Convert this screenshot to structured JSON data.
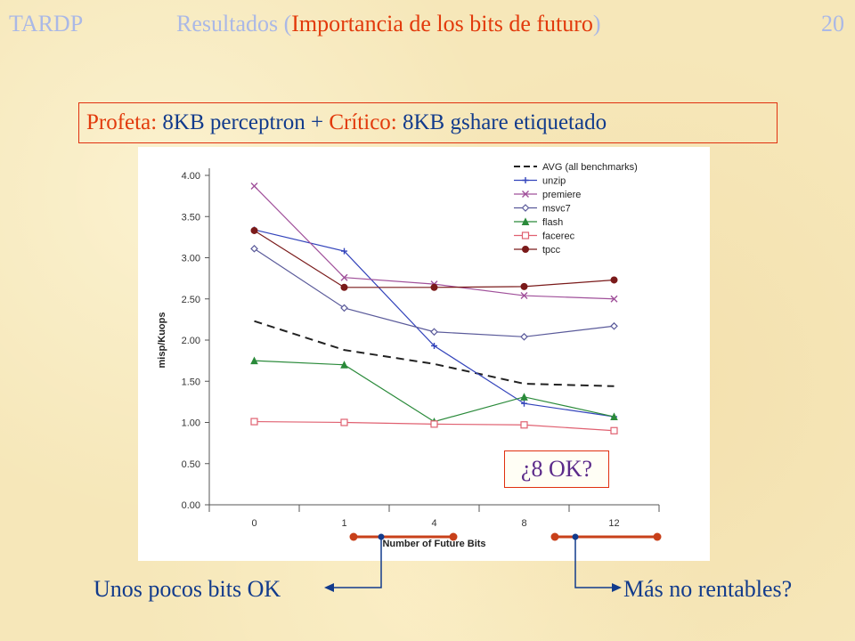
{
  "header": {
    "left": "TARDP",
    "title_pre": "Resultados (",
    "title_highlight": "Importancia de los bits de futuro",
    "title_post": ")",
    "page_number": "20"
  },
  "subtitle": {
    "part1": "Profeta: ",
    "part2": "8KB perceptron + ",
    "part3": "Crítico: ",
    "part4": "8KB gshare etiquetado"
  },
  "callout": "¿8 OK?",
  "bottom_left": "Unos pocos bits OK",
  "bottom_right": "Más no rentables?",
  "chart_data": {
    "type": "line",
    "categories": [
      "0",
      "1",
      "4",
      "8",
      "12"
    ],
    "xlabel": "Number of Future Bits",
    "ylabel": "misp/Kuops",
    "ylim": [
      0,
      4
    ],
    "yticks": [
      "0.00",
      "0.50",
      "1.00",
      "1.50",
      "2.00",
      "2.50",
      "3.00",
      "3.50",
      "4.00"
    ],
    "legend_position": "top-right",
    "series": [
      {
        "name": "AVG (all benchmarks)",
        "values": [
          2.23,
          1.88,
          1.71,
          1.47,
          1.44
        ],
        "color": "#222222",
        "marker": "none",
        "dashed": true
      },
      {
        "name": "unzip",
        "values": [
          3.34,
          3.08,
          1.93,
          1.23,
          1.07
        ],
        "color": "#3344bb",
        "marker": "plus"
      },
      {
        "name": "premiere",
        "values": [
          3.87,
          2.76,
          2.68,
          2.54,
          2.5
        ],
        "color": "#a0509a",
        "marker": "x"
      },
      {
        "name": "msvc7",
        "values": [
          3.11,
          2.39,
          2.1,
          2.04,
          2.17
        ],
        "color": "#5a5a9a",
        "marker": "diamond"
      },
      {
        "name": "flash",
        "values": [
          1.75,
          1.7,
          1.01,
          1.31,
          1.07
        ],
        "color": "#2a8a3a",
        "marker": "triangle"
      },
      {
        "name": "facerec",
        "values": [
          1.01,
          1.0,
          0.98,
          0.97,
          0.9
        ],
        "color": "#e06070",
        "marker": "square"
      },
      {
        "name": "tpcc",
        "values": [
          3.33,
          2.64,
          2.64,
          2.65,
          2.73
        ],
        "color": "#7a1a1a",
        "marker": "circle"
      }
    ]
  },
  "colors": {
    "accent_red": "#e23a0c",
    "header_faded": "#aab8e6",
    "text_blue": "#123b8c",
    "callout_text": "#5b2a8a",
    "bracket": "#c8401a",
    "connector": "#123b8c"
  }
}
